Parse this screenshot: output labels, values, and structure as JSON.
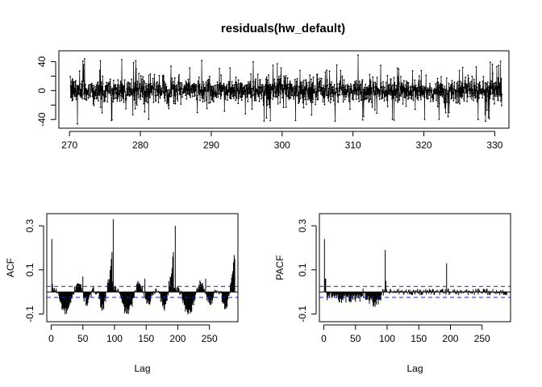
{
  "chart_data": [
    {
      "type": "line",
      "title": "residuals(hw_default)",
      "xlabel": "",
      "ylabel": "",
      "xlim": [
        268.5,
        332.0
      ],
      "ylim": [
        -52,
        55
      ],
      "x_ticks": [
        270,
        280,
        290,
        300,
        310,
        320,
        330
      ],
      "y_ticks": [
        -40,
        -20,
        0,
        20,
        40
      ],
      "y_tick_labels": [
        "-40",
        "",
        "0",
        "",
        "40"
      ],
      "series": [
        {
          "x_start": 270.1,
          "x_end": 331.0,
          "n": 1800,
          "typical_band": [
            -20,
            20
          ],
          "max": 49,
          "min": -50,
          "marker": "point"
        }
      ],
      "grid": false
    },
    {
      "type": "bar",
      "subtype": "acf",
      "title": "",
      "xlabel": "Lag",
      "ylabel": "ACF",
      "xlim": [
        -7,
        295
      ],
      "ylim": [
        -0.135,
        0.355
      ],
      "x_ticks": [
        0,
        50,
        100,
        150,
        200,
        250
      ],
      "y_ticks": [
        -0.1,
        0.1,
        0.3
      ],
      "y_tick_labels": [
        "-0.1",
        "0.1",
        "0.3"
      ],
      "max_lag": 290,
      "confidence_bound": 0.025,
      "key_values": [
        {
          "lag": 1,
          "value": 0.24
        },
        {
          "lag": 50,
          "value": 0.07
        },
        {
          "lag": 98,
          "value": 0.33
        },
        {
          "lag": 148,
          "value": 0.06
        },
        {
          "lag": 196,
          "value": 0.3
        },
        {
          "lag": 244,
          "value": 0.06
        },
        {
          "lag": 290,
          "value": 0.15
        }
      ],
      "grid": false
    },
    {
      "type": "bar",
      "subtype": "pacf",
      "title": "",
      "xlabel": "Lag",
      "ylabel": "PACF",
      "xlim": [
        -7,
        295
      ],
      "ylim": [
        -0.135,
        0.355
      ],
      "x_ticks": [
        0,
        50,
        100,
        150,
        200,
        250
      ],
      "y_ticks": [
        -0.1,
        0.1,
        0.3
      ],
      "y_tick_labels": [
        "-0.1",
        "0.1",
        "0.3"
      ],
      "max_lag": 290,
      "confidence_bound": 0.025,
      "key_values": [
        {
          "lag": 1,
          "value": 0.24
        },
        {
          "lag": 97,
          "value": 0.19
        },
        {
          "lag": 98,
          "value": 0.05
        },
        {
          "lag": 194,
          "value": 0.13
        }
      ],
      "grid": false
    }
  ]
}
